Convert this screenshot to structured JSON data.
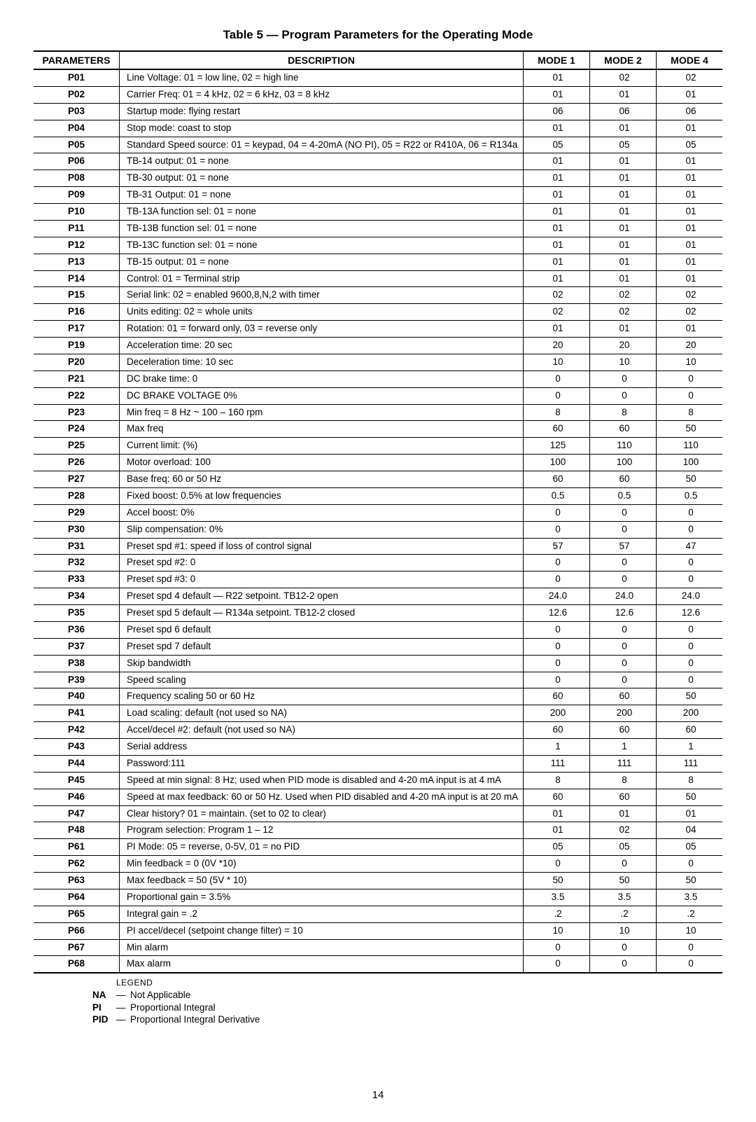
{
  "title": "Table 5 — Program Parameters for the Operating Mode",
  "columns": [
    "PARAMETERS",
    "DESCRIPTION",
    "MODE 1",
    "MODE 2",
    "MODE 4"
  ],
  "rows": [
    {
      "p": "P01",
      "d": "Line Voltage: 01 = low line, 02 = high line",
      "m1": "01",
      "m2": "02",
      "m4": "02"
    },
    {
      "p": "P02",
      "d": "Carrier Freq: 01 = 4 kHz, 02 = 6 kHz, 03 = 8 kHz",
      "m1": "01",
      "m2": "01",
      "m4": "01"
    },
    {
      "p": "P03",
      "d": "Startup mode: flying restart",
      "m1": "06",
      "m2": "06",
      "m4": "06"
    },
    {
      "p": "P04",
      "d": "Stop mode: coast to stop",
      "m1": "01",
      "m2": "01",
      "m4": "01"
    },
    {
      "p": "P05",
      "d": "Standard Speed source: 01 = keypad, 04 = 4-20mA (NO PI), 05 = R22 or R410A, 06 = R134a",
      "m1": "05",
      "m2": "05",
      "m4": "05"
    },
    {
      "p": "P06",
      "d": "TB-14 output: 01 = none",
      "m1": "01",
      "m2": "01",
      "m4": "01"
    },
    {
      "p": "P08",
      "d": "TB-30 output: 01 = none",
      "m1": "01",
      "m2": "01",
      "m4": "01"
    },
    {
      "p": "P09",
      "d": "TB-31 Output: 01 = none",
      "m1": "01",
      "m2": "01",
      "m4": "01"
    },
    {
      "p": "P10",
      "d": "TB-13A function sel: 01 = none",
      "m1": "01",
      "m2": "01",
      "m4": "01"
    },
    {
      "p": "P11",
      "d": "TB-13B function sel: 01 = none",
      "m1": "01",
      "m2": "01",
      "m4": "01"
    },
    {
      "p": "P12",
      "d": "TB-13C function sel: 01 = none",
      "m1": "01",
      "m2": "01",
      "m4": "01"
    },
    {
      "p": "P13",
      "d": "TB-15 output: 01 = none",
      "m1": "01",
      "m2": "01",
      "m4": "01"
    },
    {
      "p": "P14",
      "d": "Control: 01 = Terminal strip",
      "m1": "01",
      "m2": "01",
      "m4": "01"
    },
    {
      "p": "P15",
      "d": "Serial link: 02 = enabled 9600,8,N,2 with timer",
      "m1": "02",
      "m2": "02",
      "m4": "02"
    },
    {
      "p": "P16",
      "d": "Units editing: 02 = whole units",
      "m1": "02",
      "m2": "02",
      "m4": "02"
    },
    {
      "p": "P17",
      "d": "Rotation: 01 = forward only, 03 = reverse only",
      "m1": "01",
      "m2": "01",
      "m4": "01"
    },
    {
      "p": "P19",
      "d": "Acceleration time: 20 sec",
      "m1": "20",
      "m2": "20",
      "m4": "20"
    },
    {
      "p": "P20",
      "d": "Deceleration time: 10 sec",
      "m1": "10",
      "m2": "10",
      "m4": "10"
    },
    {
      "p": "P21",
      "d": "DC brake time: 0",
      "m1": "0",
      "m2": "0",
      "m4": "0"
    },
    {
      "p": "P22",
      "d": "DC BRAKE VOLTAGE 0%",
      "m1": "0",
      "m2": "0",
      "m4": "0"
    },
    {
      "p": "P23",
      "d": "Min freq = 8 Hz ~ 100 – 160 rpm",
      "m1": "8",
      "m2": "8",
      "m4": "8"
    },
    {
      "p": "P24",
      "d": "Max freq",
      "m1": "60",
      "m2": "60",
      "m4": "50"
    },
    {
      "p": "P25",
      "d": "Current limit: (%)",
      "m1": "125",
      "m2": "110",
      "m4": "110"
    },
    {
      "p": "P26",
      "d": "Motor overload: 100",
      "m1": "100",
      "m2": "100",
      "m4": "100"
    },
    {
      "p": "P27",
      "d": "Base freq: 60 or 50 Hz",
      "m1": "60",
      "m2": "60",
      "m4": "50"
    },
    {
      "p": "P28",
      "d": "Fixed boost: 0.5% at low frequencies",
      "m1": "0.5",
      "m2": "0.5",
      "m4": "0.5"
    },
    {
      "p": "P29",
      "d": "Accel boost: 0%",
      "m1": "0",
      "m2": "0",
      "m4": "0"
    },
    {
      "p": "P30",
      "d": "Slip compensation: 0%",
      "m1": "0",
      "m2": "0",
      "m4": "0"
    },
    {
      "p": "P31",
      "d": "Preset spd #1: speed if loss of control signal",
      "m1": "57",
      "m2": "57",
      "m4": "47"
    },
    {
      "p": "P32",
      "d": "Preset spd #2: 0",
      "m1": "0",
      "m2": "0",
      "m4": "0"
    },
    {
      "p": "P33",
      "d": "Preset spd #3: 0",
      "m1": "0",
      "m2": "0",
      "m4": "0"
    },
    {
      "p": "P34",
      "d": "Preset spd 4 default — R22 setpoint. TB12-2 open",
      "m1": "24.0",
      "m2": "24.0",
      "m4": "24.0"
    },
    {
      "p": "P35",
      "d": "Preset spd 5 default — R134a setpoint. TB12-2 closed",
      "m1": "12.6",
      "m2": "12.6",
      "m4": "12.6"
    },
    {
      "p": "P36",
      "d": "Preset spd 6 default",
      "m1": "0",
      "m2": "0",
      "m4": "0"
    },
    {
      "p": "P37",
      "d": "Preset spd 7 default",
      "m1": "0",
      "m2": "0",
      "m4": "0"
    },
    {
      "p": "P38",
      "d": "Skip bandwidth",
      "m1": "0",
      "m2": "0",
      "m4": "0"
    },
    {
      "p": "P39",
      "d": "Speed scaling",
      "m1": "0",
      "m2": "0",
      "m4": "0"
    },
    {
      "p": "P40",
      "d": "Frequency scaling 50 or 60 Hz",
      "m1": "60",
      "m2": "60",
      "m4": "50"
    },
    {
      "p": "P41",
      "d": "Load scaling: default (not used so NA)",
      "m1": "200",
      "m2": "200",
      "m4": "200"
    },
    {
      "p": "P42",
      "d": "Accel/decel #2: default (not used so NA)",
      "m1": "60",
      "m2": "60",
      "m4": "60"
    },
    {
      "p": "P43",
      "d": "Serial address",
      "m1": "1",
      "m2": "1",
      "m4": "1"
    },
    {
      "p": "P44",
      "d": "Password:111",
      "m1": "111",
      "m2": "111",
      "m4": "111"
    },
    {
      "p": "P45",
      "d": "Speed at min signal: 8 Hz; used when PID mode is disabled and 4-20 mA input is at 4 mA",
      "m1": "8",
      "m2": "8",
      "m4": "8"
    },
    {
      "p": "P46",
      "d": "Speed at max feedback: 60 or 50 Hz. Used when PID disabled and 4-20 mA input is at 20 mA",
      "m1": "60",
      "m2": "60",
      "m4": "50"
    },
    {
      "p": "P47",
      "d": "Clear history? 01 = maintain. (set to 02 to clear)",
      "m1": "01",
      "m2": "01",
      "m4": "01"
    },
    {
      "p": "P48",
      "d": "Program selection: Program 1 – 12",
      "m1": "01",
      "m2": "02",
      "m4": "04"
    },
    {
      "p": "P61",
      "d": "PI Mode: 05 = reverse, 0-5V, 01 = no PID",
      "m1": "05",
      "m2": "05",
      "m4": "05"
    },
    {
      "p": "P62",
      "d": "Min feedback = 0 (0V *10)",
      "m1": "0",
      "m2": "0",
      "m4": "0"
    },
    {
      "p": "P63",
      "d": "Max feedback = 50 (5V * 10)",
      "m1": "50",
      "m2": "50",
      "m4": "50"
    },
    {
      "p": "P64",
      "d": "Proportional gain = 3.5%",
      "m1": "3.5",
      "m2": "3.5",
      "m4": "3.5"
    },
    {
      "p": "P65",
      "d": "Integral gain = .2",
      "m1": ".2",
      "m2": ".2",
      "m4": ".2"
    },
    {
      "p": "P66",
      "d": "PI accel/decel (setpoint change filter) = 10",
      "m1": "10",
      "m2": "10",
      "m4": "10"
    },
    {
      "p": "P67",
      "d": "Min alarm",
      "m1": "0",
      "m2": "0",
      "m4": "0"
    },
    {
      "p": "P68",
      "d": "Max alarm",
      "m1": "0",
      "m2": "0",
      "m4": "0"
    }
  ],
  "legend": {
    "title": "LEGEND",
    "items": [
      {
        "abbr": "NA",
        "dash": "—",
        "def": "Not Applicable"
      },
      {
        "abbr": "PI",
        "dash": "—",
        "def": "Proportional Integral"
      },
      {
        "abbr": "PID",
        "dash": "—",
        "def": "Proportional Integral Derivative"
      }
    ]
  },
  "page_number": "14"
}
